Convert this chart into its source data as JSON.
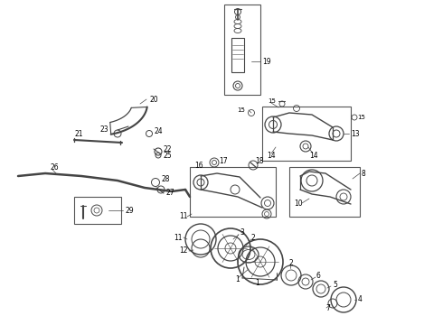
{
  "background_color": "#ffffff",
  "line_color": "#444444",
  "border_color": "#555555",
  "fig_width": 4.9,
  "fig_height": 3.6,
  "dpi": 100
}
